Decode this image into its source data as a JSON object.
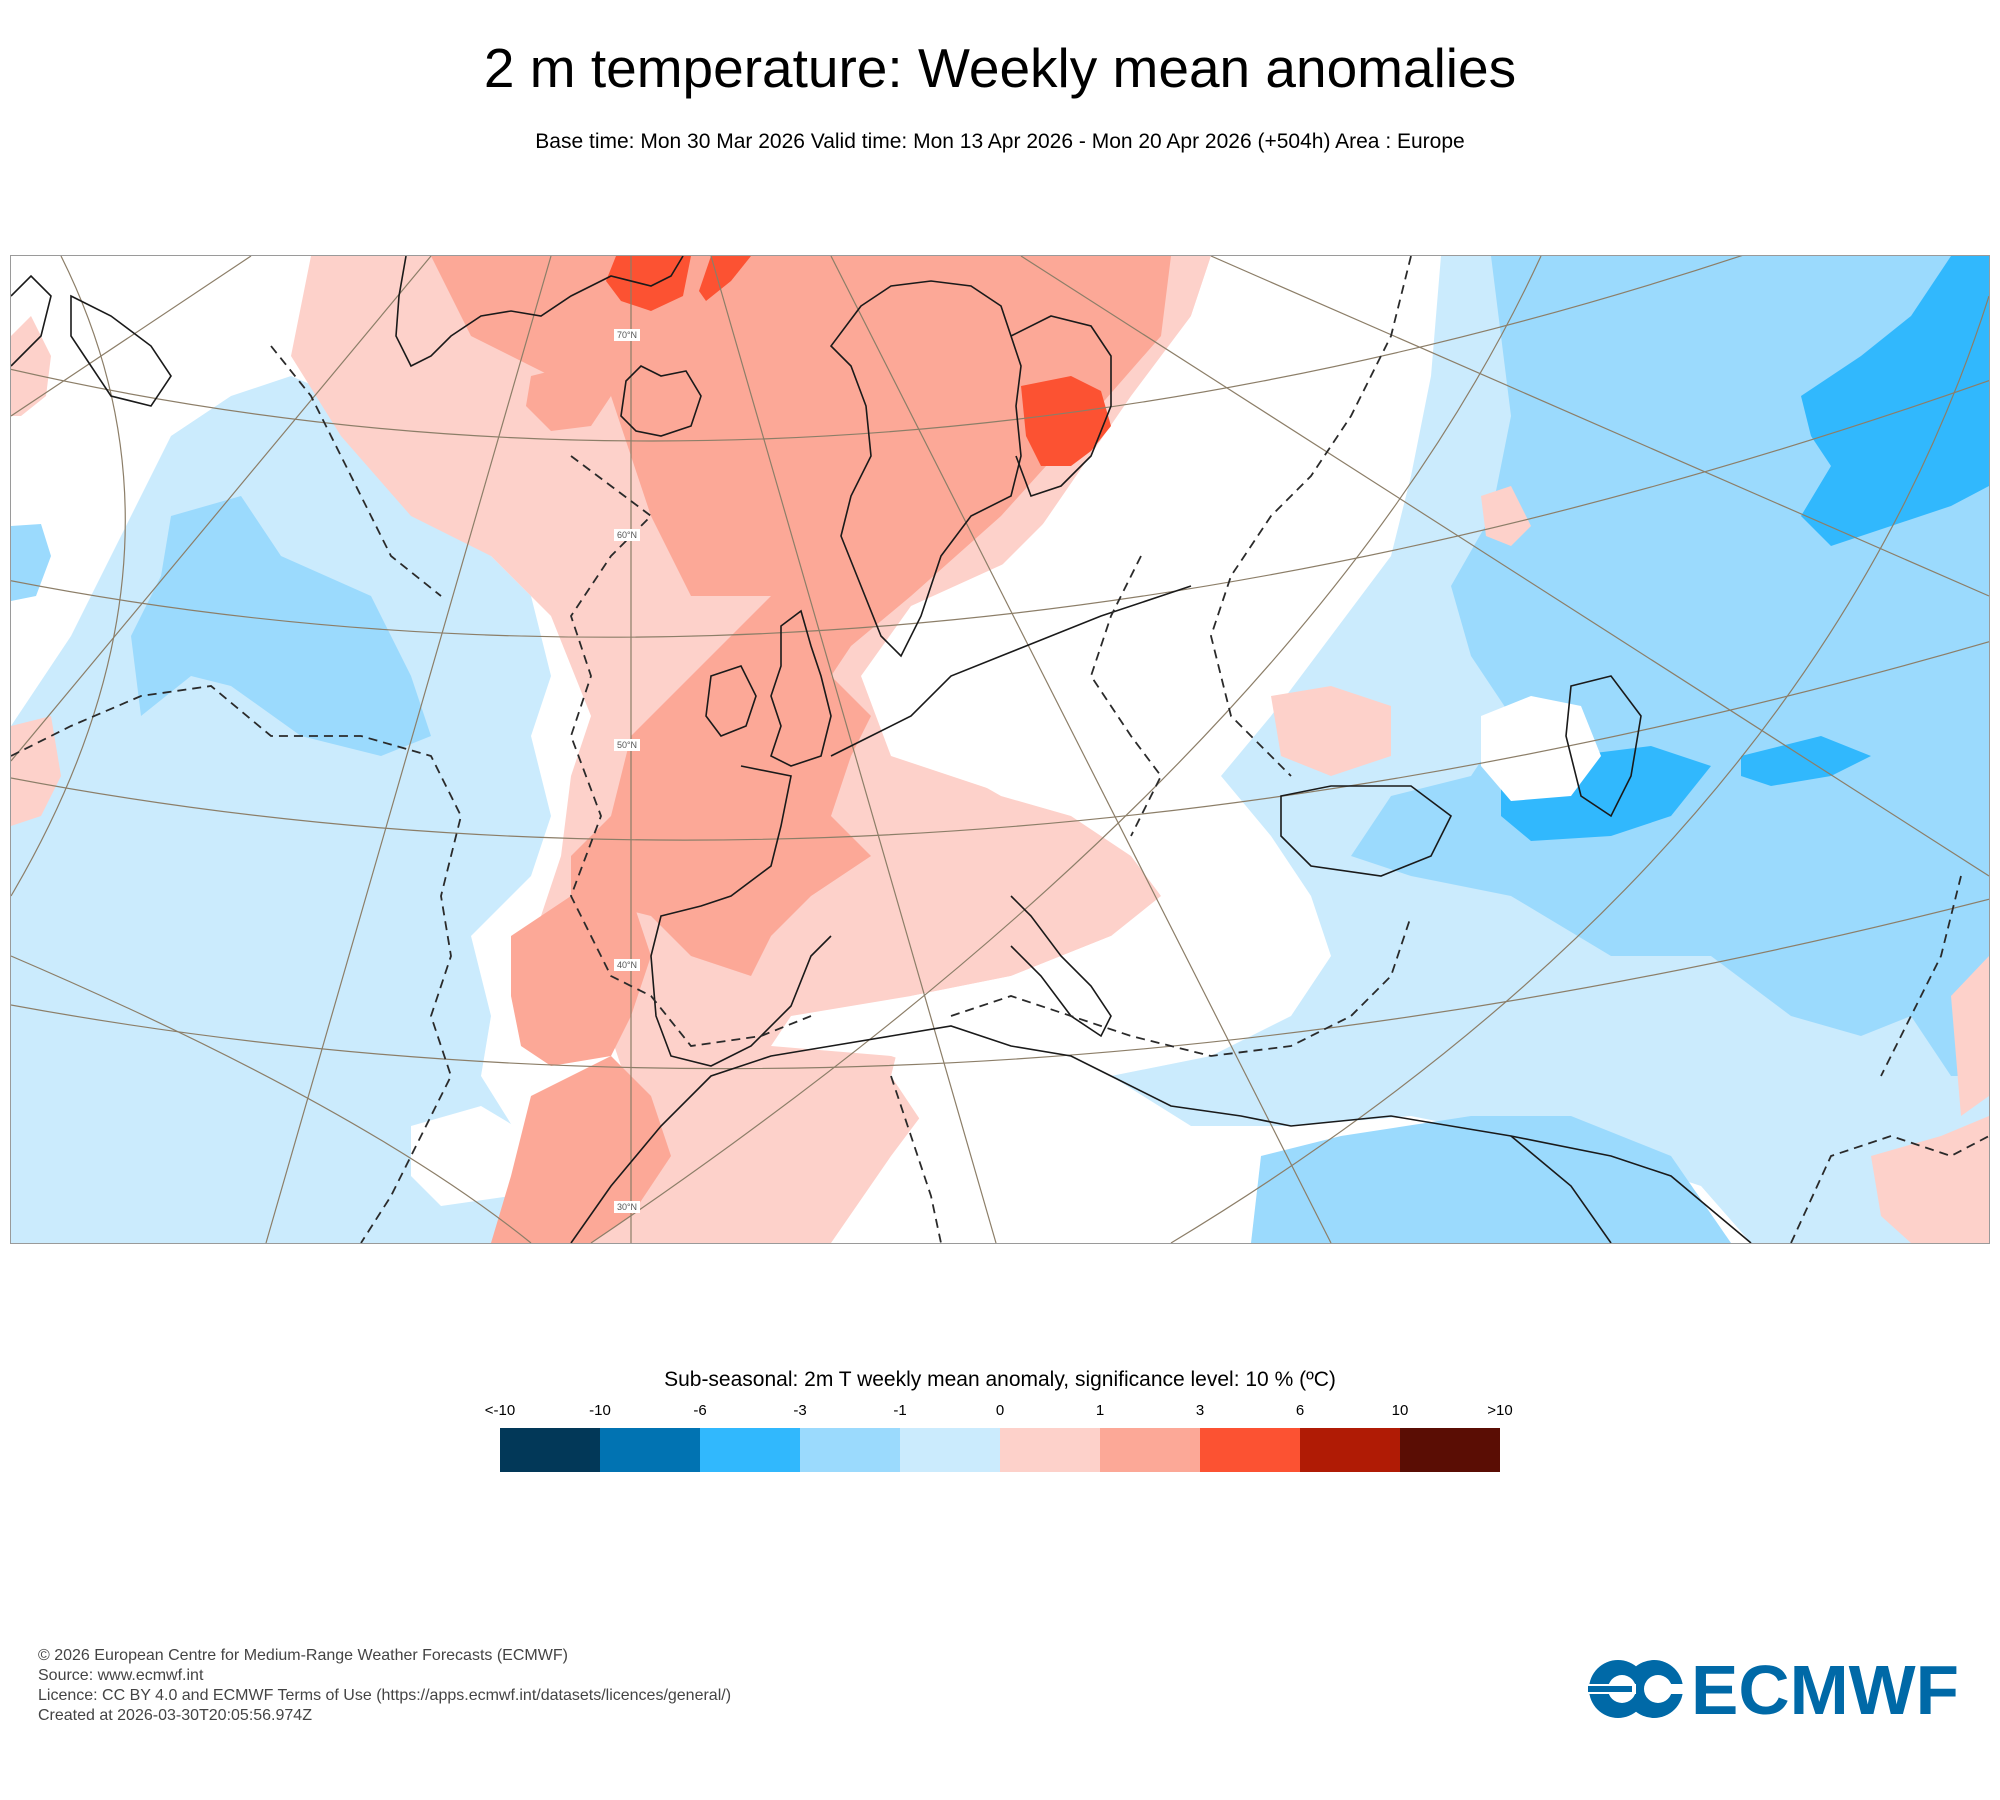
{
  "header": {
    "title": "2 m temperature: Weekly mean anomalies",
    "subtitle": "Base time: Mon 30 Mar 2026 Valid time: Mon 13 Apr 2026 - Mon 20 Apr 2026 (+504h) Area : Europe"
  },
  "map": {
    "area": "Europe",
    "latitude_labels": [
      "70°N",
      "60°N",
      "50°N",
      "40°N",
      "30°N"
    ],
    "colors": {
      "land_outline": "#1a1a1a",
      "graticule": "#8c7e68",
      "significance_contour": "#2a2a2a"
    }
  },
  "legend": {
    "title": "Sub-seasonal: 2m T weekly mean anomaly, significance level: 10 % (ºC)",
    "tick_labels": [
      "<-10",
      "-10",
      "-6",
      "-3",
      "-1",
      "0",
      "1",
      "3",
      "6",
      "10",
      ">10"
    ],
    "swatches": [
      {
        "range": "<-10",
        "color": "#023858"
      },
      {
        "range": "-10 to -6",
        "color": "#0173b2"
      },
      {
        "range": "-6 to -3",
        "color": "#31b8fd"
      },
      {
        "range": "-3 to -1",
        "color": "#9bdafd"
      },
      {
        "range": "-1 to 0",
        "color": "#cbebfd"
      },
      {
        "range": "0 to 1",
        "color": "#fdd1ca"
      },
      {
        "range": "1 to 3",
        "color": "#fca897"
      },
      {
        "range": "3 to 6",
        "color": "#fc5232"
      },
      {
        "range": "6 to 10",
        "color": "#b01b05"
      },
      {
        "range": ">10",
        "color": "#5a0d04"
      }
    ]
  },
  "footer": {
    "copyright": "© 2026 European Centre for Medium-Range Weather Forecasts (ECMWF)",
    "source": "Source: www.ecmwf.int",
    "licence": "Licence: CC BY 4.0 and ECMWF Terms of Use (https://apps.ecmwf.int/datasets/licences/general/)",
    "created": "Created at 2026-03-30T20:05:56.974Z"
  },
  "logo": {
    "text": "ECMWF",
    "color": "#0069a7"
  }
}
